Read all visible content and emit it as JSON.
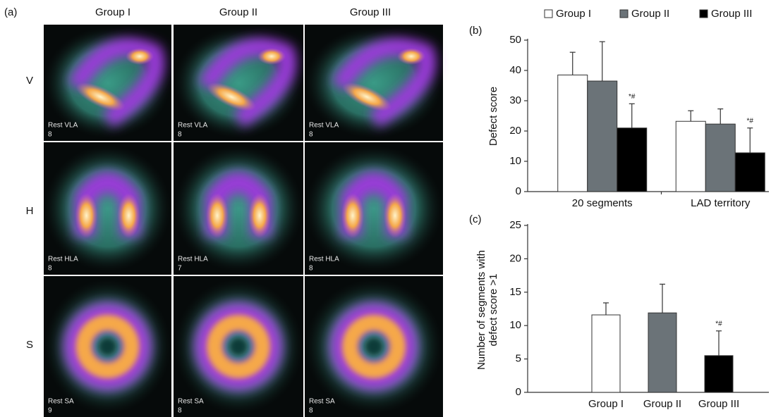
{
  "panel_a": {
    "label": "(a)",
    "columns": [
      "Group I",
      "Group II",
      "Group III"
    ],
    "rows": [
      "V",
      "H",
      "S"
    ],
    "images": [
      [
        {
          "view": "Rest VLA",
          "slice": 8
        },
        {
          "view": "Rest VLA",
          "slice": 8
        },
        {
          "view": "Rest VLA",
          "slice": 8
        }
      ],
      [
        {
          "view": "Rest HLA",
          "slice": 8
        },
        {
          "view": "Rest HLA",
          "slice": 7
        },
        {
          "view": "Rest HLA",
          "slice": 8
        }
      ],
      [
        {
          "view": "Rest SA",
          "slice": 9
        },
        {
          "view": "Rest SA",
          "slice": 8
        },
        {
          "view": "Rest SA",
          "slice": 8
        }
      ]
    ]
  },
  "chart_data": [
    {
      "type": "bar",
      "panel_label": "(b)",
      "ylabel": "Defect score",
      "categories": [
        "20 segments",
        "LAD territory"
      ],
      "series": [
        {
          "name": "Group I",
          "color": "#ffffff",
          "values": [
            38.5,
            23.2
          ],
          "errors": [
            7.5,
            3.5
          ],
          "annotations": [
            null,
            null
          ]
        },
        {
          "name": "Group II",
          "color": "#6b7378",
          "values": [
            36.5,
            22.3
          ],
          "errors": [
            13,
            5
          ],
          "annotations": [
            null,
            null
          ]
        },
        {
          "name": "Group III",
          "color": "#000000",
          "values": [
            21,
            12.8
          ],
          "errors": [
            8,
            8.2
          ],
          "annotations": [
            "*#",
            "*#"
          ]
        }
      ],
      "ylim": [
        0,
        50
      ],
      "yticks": [
        0,
        10,
        20,
        30,
        40,
        50
      ],
      "legend": "top"
    },
    {
      "type": "bar",
      "panel_label": "(c)",
      "ylabel": [
        "Number of segments with",
        "defect score >1"
      ],
      "categories": [
        "Group I",
        "Group II",
        "Group III"
      ],
      "values": [
        11.6,
        11.9,
        5.5
      ],
      "errors": [
        1.8,
        4.3,
        3.7
      ],
      "colors": [
        "#ffffff",
        "#6b7378",
        "#000000"
      ],
      "annotations": [
        null,
        null,
        "*#"
      ],
      "ylim": [
        0,
        25
      ],
      "yticks": [
        0,
        5,
        10,
        15,
        20,
        25
      ]
    }
  ]
}
